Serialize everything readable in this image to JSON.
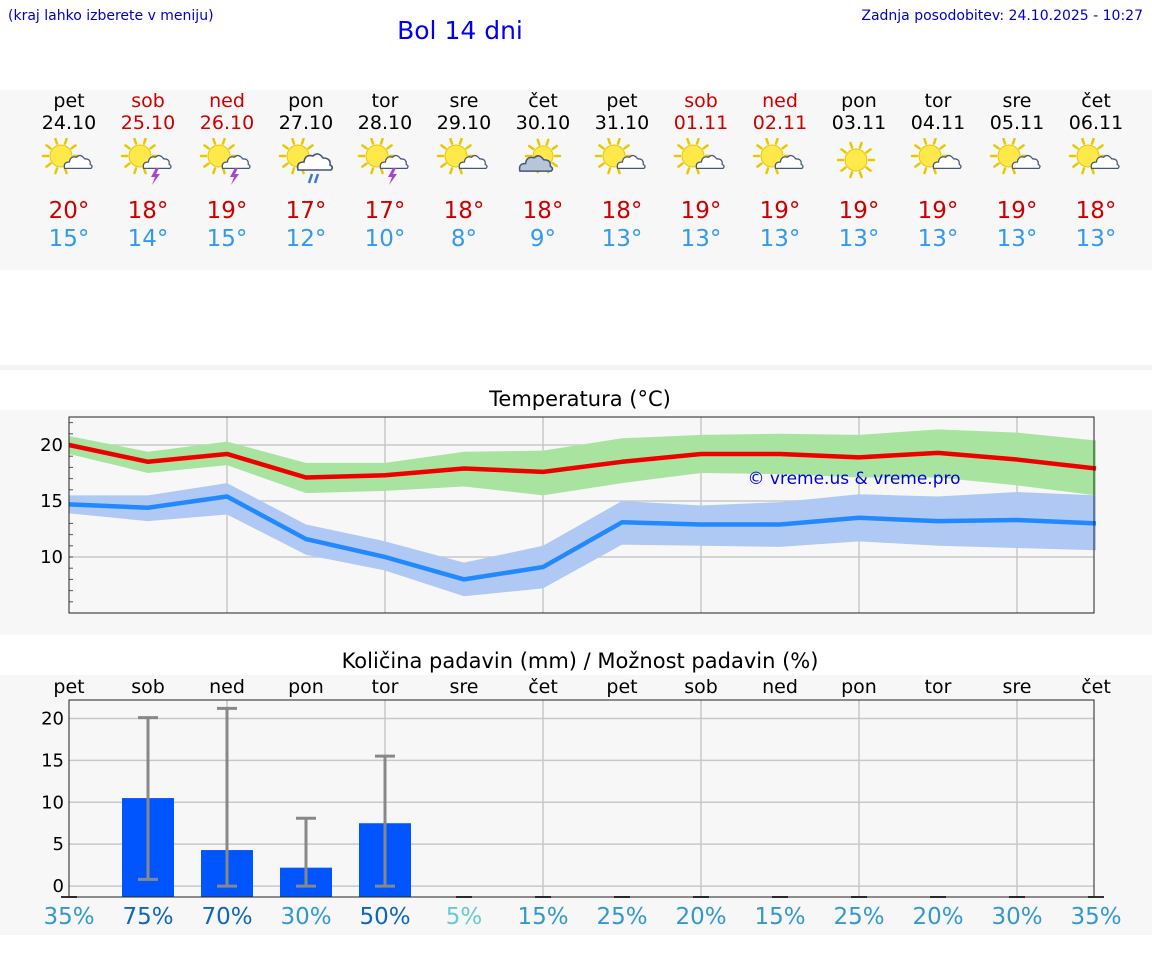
{
  "header": {
    "hint": "(kraj lahko izberete v meniju)",
    "title": "Bol 14 dni",
    "updated": "Zadnja posodobitev: 24.10.2025 - 10:27"
  },
  "days": [
    {
      "name": "pet",
      "date": "24.10",
      "weekend": false,
      "icon": "partly-cloudy-icon",
      "tmax": "20°",
      "tmin": "15°"
    },
    {
      "name": "sob",
      "date": "25.10",
      "weekend": true,
      "icon": "thunderstorm-icon",
      "tmax": "18°",
      "tmin": "14°"
    },
    {
      "name": "ned",
      "date": "26.10",
      "weekend": true,
      "icon": "thunderstorm-icon",
      "tmax": "19°",
      "tmin": "15°"
    },
    {
      "name": "pon",
      "date": "27.10",
      "weekend": false,
      "icon": "rain-shower-icon",
      "tmax": "17°",
      "tmin": "12°"
    },
    {
      "name": "tor",
      "date": "28.10",
      "weekend": false,
      "icon": "thunderstorm-icon",
      "tmax": "17°",
      "tmin": "10°"
    },
    {
      "name": "sre",
      "date": "29.10",
      "weekend": false,
      "icon": "partly-cloudy-icon",
      "tmax": "18°",
      "tmin": "8°"
    },
    {
      "name": "čet",
      "date": "30.10",
      "weekend": false,
      "icon": "mostly-cloudy-icon",
      "tmax": "18°",
      "tmin": "9°"
    },
    {
      "name": "pet",
      "date": "31.10",
      "weekend": false,
      "icon": "partly-cloudy-icon",
      "tmax": "18°",
      "tmin": "13°"
    },
    {
      "name": "sob",
      "date": "01.11",
      "weekend": true,
      "icon": "partly-cloudy-icon",
      "tmax": "19°",
      "tmin": "13°"
    },
    {
      "name": "ned",
      "date": "02.11",
      "weekend": true,
      "icon": "partly-cloudy-icon",
      "tmax": "19°",
      "tmin": "13°"
    },
    {
      "name": "pon",
      "date": "03.11",
      "weekend": false,
      "icon": "sunny-icon",
      "tmax": "19°",
      "tmin": "13°"
    },
    {
      "name": "tor",
      "date": "04.11",
      "weekend": false,
      "icon": "partly-cloudy-icon",
      "tmax": "19°",
      "tmin": "13°"
    },
    {
      "name": "sre",
      "date": "05.11",
      "weekend": false,
      "icon": "partly-cloudy-icon",
      "tmax": "19°",
      "tmin": "13°"
    },
    {
      "name": "čet",
      "date": "06.11",
      "weekend": false,
      "icon": "partly-cloudy-icon",
      "tmax": "18°",
      "tmin": "13°"
    }
  ],
  "chart_data": [
    {
      "type": "line",
      "title": "Temperatura (°C)",
      "x": [
        "24.10",
        "25.10",
        "26.10",
        "27.10",
        "28.10",
        "29.10",
        "30.10",
        "31.10",
        "01.11",
        "02.11",
        "03.11",
        "04.11",
        "05.11",
        "06.11"
      ],
      "ylim": [
        5,
        22.5
      ],
      "yticks": [
        10,
        15,
        20
      ],
      "grid": true,
      "series": [
        {
          "values": [
            20.0,
            18.5,
            19.2,
            17.1,
            17.3,
            17.9,
            17.6,
            18.5,
            19.2,
            19.2,
            18.9,
            19.3,
            18.7,
            17.9
          ],
          "band_low": [
            19.2,
            17.5,
            18.2,
            15.7,
            15.9,
            16.3,
            15.5,
            16.6,
            17.5,
            17.4,
            17.1,
            17.1,
            16.4,
            15.5
          ],
          "band_high": [
            20.8,
            19.4,
            20.3,
            18.4,
            18.4,
            19.4,
            19.5,
            20.6,
            20.9,
            21.0,
            20.9,
            21.4,
            21.1,
            20.4
          ],
          "color": "#ee0000",
          "band_color": "#a8e4a0"
        },
        {
          "values": [
            14.7,
            14.4,
            15.4,
            11.6,
            10.0,
            8.0,
            9.1,
            13.1,
            12.9,
            12.9,
            13.5,
            13.2,
            13.3,
            13.0
          ],
          "band_low": [
            13.9,
            13.2,
            13.8,
            10.2,
            8.8,
            6.5,
            7.2,
            11.1,
            11.0,
            10.9,
            11.4,
            11.0,
            10.8,
            10.6
          ],
          "band_high": [
            15.5,
            15.5,
            16.6,
            12.9,
            11.4,
            9.5,
            11.0,
            15.0,
            14.6,
            14.9,
            15.6,
            15.4,
            15.8,
            15.5
          ],
          "color": "#2288ff",
          "band_color": "#b0c8f4"
        }
      ],
      "annotation": "© vreme.us & vreme.pro"
    },
    {
      "type": "bar",
      "title": "Količina padavin (mm) / Možnost padavin (%)",
      "categories": [
        "pet",
        "sob",
        "ned",
        "pon",
        "tor",
        "sre",
        "čet",
        "pet",
        "sob",
        "ned",
        "pon",
        "tor",
        "sre",
        "čet"
      ],
      "values": [
        0,
        10.5,
        4.3,
        2.2,
        7.5,
        0,
        0,
        0,
        0,
        0,
        0,
        0,
        0,
        0
      ],
      "error_low": [
        0,
        0.8,
        0,
        0,
        0,
        0,
        0,
        0,
        0,
        0,
        0,
        0,
        0,
        0
      ],
      "error_high": [
        0,
        20.1,
        21.2,
        8.1,
        15.5,
        0,
        0,
        0,
        0,
        0,
        0,
        0,
        0,
        0
      ],
      "ylim": [
        -1.3,
        22.2
      ],
      "yticks": [
        0,
        5,
        10,
        15,
        20
      ],
      "grid": true,
      "bar_color": "#0055ff",
      "probability": [
        "35%",
        "75%",
        "70%",
        "30%",
        "50%",
        "5%",
        "15%",
        "25%",
        "20%",
        "15%",
        "25%",
        "20%",
        "30%",
        "35%"
      ],
      "probability_colors": [
        "#3399cc",
        "#1166bb",
        "#1166bb",
        "#3399cc",
        "#1166bb",
        "#66cccc",
        "#3399cc",
        "#3399cc",
        "#3399cc",
        "#3399cc",
        "#3399cc",
        "#3399cc",
        "#3399cc",
        "#3399cc"
      ]
    }
  ]
}
